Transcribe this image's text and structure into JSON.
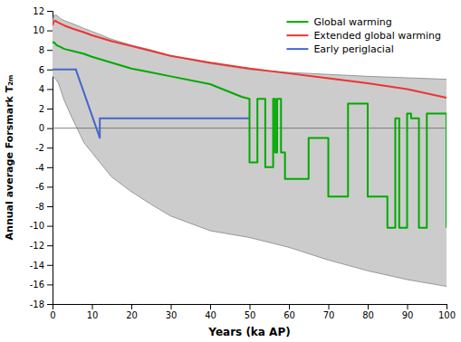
{
  "chart_data": {
    "type": "line",
    "xlabel": "Years (ka AP)",
    "ylabel": "Annual average Forsmark T₂ₘ",
    "xlim": [
      0,
      100
    ],
    "ylim": [
      -18,
      12
    ],
    "xticks": [
      0,
      10,
      20,
      30,
      40,
      50,
      60,
      70,
      80,
      90,
      100
    ],
    "yticks": [
      -18,
      -16,
      -14,
      -12,
      -10,
      -8,
      -6,
      -4,
      -2,
      0,
      2,
      4,
      6,
      8,
      10,
      12
    ],
    "grid": false,
    "legend": "upper right",
    "band": {
      "color": "#cccccc",
      "x": [
        0,
        0.3,
        0.8,
        1.5,
        2,
        3,
        5,
        8,
        10,
        15,
        20,
        25,
        30,
        40,
        50,
        60,
        70,
        80,
        90,
        100
      ],
      "upper": [
        10.8,
        11.5,
        11.6,
        11.4,
        11.2,
        11.0,
        10.7,
        10.2,
        9.9,
        9.1,
        8.5,
        8.0,
        7.4,
        6.6,
        6.0,
        5.7,
        5.5,
        5.3,
        5.15,
        5.0
      ],
      "lower": [
        5.3,
        5.2,
        5.0,
        4.6,
        4.0,
        2.8,
        1.0,
        -1.5,
        -2.5,
        -5.0,
        -6.5,
        -7.8,
        -9.0,
        -10.5,
        -11.2,
        -12.2,
        -13.5,
        -14.6,
        -15.5,
        -16.2
      ]
    },
    "hlines": [
      0
    ],
    "series": [
      {
        "name": "Global warming",
        "color": "#00aa00",
        "x": [
          0,
          0.3,
          0.8,
          1,
          2,
          3,
          5,
          8,
          10,
          15,
          20,
          25,
          30,
          40,
          48,
          50,
          50,
          50,
          52,
          52,
          54,
          54,
          56,
          56,
          56.5,
          56.5,
          57,
          57,
          58,
          58,
          59,
          59,
          65,
          65,
          70,
          70,
          75,
          75,
          80,
          80,
          85,
          85,
          87,
          87,
          88,
          88,
          90,
          90,
          91,
          91,
          93,
          93,
          95,
          95,
          100,
          100
        ],
        "values": [
          8.7,
          8.8,
          8.6,
          8.5,
          8.3,
          8.1,
          7.9,
          7.6,
          7.3,
          6.7,
          6.1,
          5.7,
          5.3,
          4.5,
          3.2,
          3.0,
          3.0,
          -3.5,
          -3.5,
          3.0,
          3.0,
          -4.0,
          -4.0,
          3.0,
          3.0,
          -2.5,
          -2.5,
          3.0,
          3.0,
          -2.5,
          -2.5,
          -5.2,
          -5.2,
          -1.0,
          -1.0,
          -7.0,
          -7.0,
          2.5,
          2.5,
          -7.0,
          -7.0,
          -10.2,
          -10.2,
          1.0,
          1.0,
          -10.2,
          -10.2,
          1.5,
          1.5,
          1.0,
          1.0,
          -10.2,
          -10.2,
          1.5,
          1.5,
          -10.2
        ]
      },
      {
        "name": "Extended global warming",
        "color": "#ee3333",
        "x": [
          0,
          0.3,
          0.8,
          1,
          2,
          3,
          5,
          8,
          10,
          15,
          20,
          25,
          30,
          40,
          50,
          60,
          70,
          80,
          90,
          100
        ],
        "values": [
          10.5,
          10.9,
          11.0,
          10.9,
          10.7,
          10.5,
          10.2,
          9.8,
          9.5,
          8.9,
          8.4,
          7.9,
          7.4,
          6.7,
          6.1,
          5.6,
          5.1,
          4.6,
          4.0,
          3.1
        ]
      },
      {
        "name": "Early periglacial",
        "color": "#4466cc",
        "x": [
          0,
          6,
          6,
          12,
          12,
          20,
          50
        ],
        "values": [
          6.0,
          6.0,
          5.9,
          -1.0,
          1.0,
          1.0,
          1.0
        ]
      }
    ]
  }
}
